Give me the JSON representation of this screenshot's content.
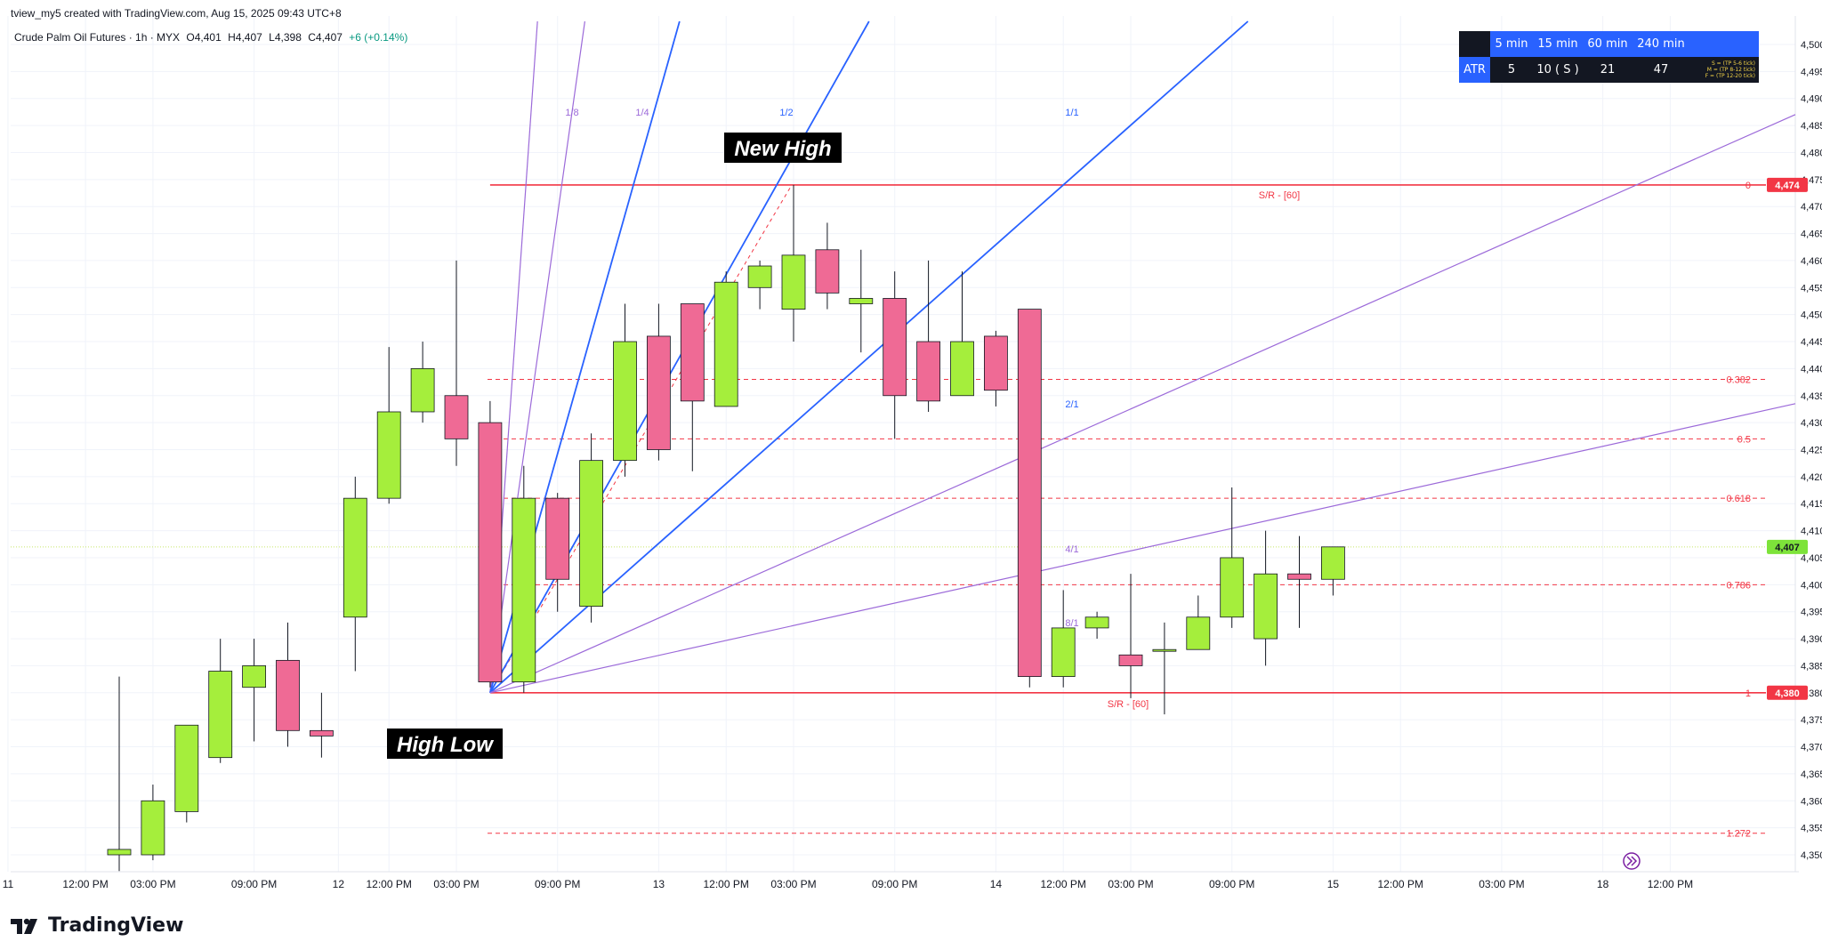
{
  "attribution": "tview_my5 created with TradingView.com, Aug 15, 2025 09:43 UTC+8",
  "symbol": {
    "title": "Crude Palm Oil Futures · 1h · MYX",
    "o_label": "O",
    "o": "4,401",
    "h_label": "H",
    "h": "4,407",
    "l_label": "L",
    "l": "4,398",
    "c_label": "C",
    "c": "4,407",
    "change": "+6 (+0.14%)"
  },
  "atr_table": {
    "header": [
      "5 min",
      "15 min",
      "60 min",
      "240 min"
    ],
    "row_label": "ATR",
    "values": [
      "5",
      "10 ( S )",
      "21",
      "47"
    ],
    "legend": [
      "S = (TP 5-6 tick)",
      "M = (TP 8-12 tick)",
      "F = (TP 12-20 tick)"
    ]
  },
  "annotations": {
    "new_high": "New High",
    "high_low": "High Low",
    "sr_top": "S/R - [60]",
    "sr_bottom": "S/R - [60]"
  },
  "colors": {
    "bull": "#a5ee3c",
    "bear": "#ef6a95",
    "gann_blue": "#2962ff",
    "gann_purple": "#9c6ad9",
    "fib_red": "#f23645",
    "price_tag_green": "#7de33a"
  },
  "footer": {
    "brand": "TradingView"
  },
  "chart_data": {
    "type": "candlestick",
    "ylim": [
      4346,
      4503
    ],
    "y_ticks": [
      4350,
      4355,
      4360,
      4365,
      4370,
      4375,
      4380,
      4385,
      4390,
      4395,
      4400,
      4405,
      4410,
      4415,
      4420,
      4425,
      4430,
      4435,
      4440,
      4445,
      4450,
      4455,
      4460,
      4465,
      4470,
      4475,
      4480,
      4485,
      4490,
      4495,
      4500
    ],
    "x_ticks": [
      {
        "label": "11",
        "bar": -3.3
      },
      {
        "label": "12:00 PM",
        "bar": -1
      },
      {
        "label": "03:00 PM",
        "bar": 1
      },
      {
        "label": "09:00 PM",
        "bar": 4
      },
      {
        "label": "12",
        "bar": 6.5
      },
      {
        "label": "12:00 PM",
        "bar": 8
      },
      {
        "label": "03:00 PM",
        "bar": 10
      },
      {
        "label": "09:00 PM",
        "bar": 13
      },
      {
        "label": "13",
        "bar": 16
      },
      {
        "label": "12:00 PM",
        "bar": 18
      },
      {
        "label": "03:00 PM",
        "bar": 20
      },
      {
        "label": "09:00 PM",
        "bar": 23
      },
      {
        "label": "14",
        "bar": 26
      },
      {
        "label": "12:00 PM",
        "bar": 28
      },
      {
        "label": "03:00 PM",
        "bar": 30
      },
      {
        "label": "09:00 PM",
        "bar": 33
      },
      {
        "label": "15",
        "bar": 36
      },
      {
        "label": "12:00 PM",
        "bar": 38
      },
      {
        "label": "03:00 PM",
        "bar": 41
      },
      {
        "label": "18",
        "bar": 44
      },
      {
        "label": "12:00 PM",
        "bar": 46
      }
    ],
    "candles": [
      {
        "o": 4350,
        "h": 4383,
        "l": 4347,
        "c": 4351
      },
      {
        "o": 4350,
        "h": 4363,
        "l": 4349,
        "c": 4360
      },
      {
        "o": 4358,
        "h": 4374,
        "l": 4356,
        "c": 4374
      },
      {
        "o": 4368,
        "h": 4390,
        "l": 4367,
        "c": 4384
      },
      {
        "o": 4381,
        "h": 4390,
        "l": 4371,
        "c": 4385
      },
      {
        "o": 4386,
        "h": 4393,
        "l": 4370,
        "c": 4373
      },
      {
        "o": 4373,
        "h": 4380,
        "l": 4368,
        "c": 4372
      },
      {
        "o": 4394,
        "h": 4420,
        "l": 4384,
        "c": 4416
      },
      {
        "o": 4416,
        "h": 4444,
        "l": 4415,
        "c": 4432
      },
      {
        "o": 4432,
        "h": 4445,
        "l": 4430,
        "c": 4440
      },
      {
        "o": 4435,
        "h": 4460,
        "l": 4422,
        "c": 4427
      },
      {
        "o": 4430,
        "h": 4434,
        "l": 4381,
        "c": 4382
      },
      {
        "o": 4382,
        "h": 4422,
        "l": 4380,
        "c": 4416
      },
      {
        "o": 4416,
        "h": 4417,
        "l": 4395,
        "c": 4401
      },
      {
        "o": 4396,
        "h": 4428,
        "l": 4393,
        "c": 4423
      },
      {
        "o": 4423,
        "h": 4452,
        "l": 4420,
        "c": 4445
      },
      {
        "o": 4446,
        "h": 4452,
        "l": 4423,
        "c": 4425
      },
      {
        "o": 4452,
        "h": 4452,
        "l": 4421,
        "c": 4434
      },
      {
        "o": 4433,
        "h": 4458,
        "l": 4433,
        "c": 4456
      },
      {
        "o": 4455,
        "h": 4460,
        "l": 4451,
        "c": 4459
      },
      {
        "o": 4451,
        "h": 4474,
        "l": 4445,
        "c": 4461
      },
      {
        "o": 4462,
        "h": 4467,
        "l": 4451,
        "c": 4454
      },
      {
        "o": 4452,
        "h": 4462,
        "l": 4443,
        "c": 4453
      },
      {
        "o": 4453,
        "h": 4458,
        "l": 4427,
        "c": 4435
      },
      {
        "o": 4445,
        "h": 4460,
        "l": 4432,
        "c": 4434
      },
      {
        "o": 4435,
        "h": 4458,
        "l": 4435,
        "c": 4445
      },
      {
        "o": 4446,
        "h": 4447,
        "l": 4433,
        "c": 4436
      },
      {
        "o": 4451,
        "h": 4451,
        "l": 4381,
        "c": 4383
      },
      {
        "o": 4383,
        "h": 4399,
        "l": 4381,
        "c": 4392
      },
      {
        "o": 4392,
        "h": 4395,
        "l": 4390,
        "c": 4394
      },
      {
        "o": 4387,
        "h": 4402,
        "l": 4379,
        "c": 4385
      },
      {
        "o": 4388,
        "h": 4393,
        "l": 4376,
        "c": 4388
      },
      {
        "o": 4388,
        "h": 4398,
        "l": 4388,
        "c": 4394
      },
      {
        "o": 4394,
        "h": 4418,
        "l": 4392,
        "c": 4405
      },
      {
        "o": 4390,
        "h": 4410,
        "l": 4385,
        "c": 4402
      },
      {
        "o": 4402,
        "h": 4409,
        "l": 4392,
        "c": 4401
      },
      {
        "o": 4401,
        "h": 4407,
        "l": 4398,
        "c": 4407
      }
    ],
    "gann_fan": {
      "origin": {
        "bar": 11,
        "price": 4380
      },
      "ref": {
        "bar": 19.5,
        "price": 4474
      },
      "lines": [
        {
          "label": "1/8",
          "ratio": 0.125,
          "color": "purple"
        },
        {
          "label": "1/4",
          "ratio": 0.25,
          "color": "purple"
        },
        {
          "label": "1/2",
          "ratio": 0.5,
          "color": "blue"
        },
        {
          "label": "1/1",
          "ratio": 1,
          "color": "blue"
        },
        {
          "label": "2/1",
          "ratio": 2,
          "color": "blue"
        },
        {
          "label": "4/1",
          "ratio": 4,
          "color": "purple"
        },
        {
          "label": "8/1",
          "ratio": 8,
          "color": "purple"
        }
      ]
    },
    "fib_levels": [
      {
        "label": "0",
        "price": 4474,
        "solid": true
      },
      {
        "label": "0.382",
        "price": 4438,
        "solid": false
      },
      {
        "label": "0.5",
        "price": 4427,
        "solid": false
      },
      {
        "label": "0.618",
        "price": 4416,
        "solid": false
      },
      {
        "label": "0.786",
        "price": 4400,
        "solid": false
      },
      {
        "label": "1",
        "price": 4380,
        "solid": true
      },
      {
        "label": "1.272",
        "price": 4354,
        "solid": false
      }
    ],
    "price_tags": [
      {
        "label": "4,474",
        "price": 4474,
        "color": "red"
      },
      {
        "label": "4,407",
        "price": 4407,
        "color": "green"
      },
      {
        "label": "4,380",
        "price": 4380,
        "color": "red"
      }
    ],
    "last_price": 4407
  }
}
